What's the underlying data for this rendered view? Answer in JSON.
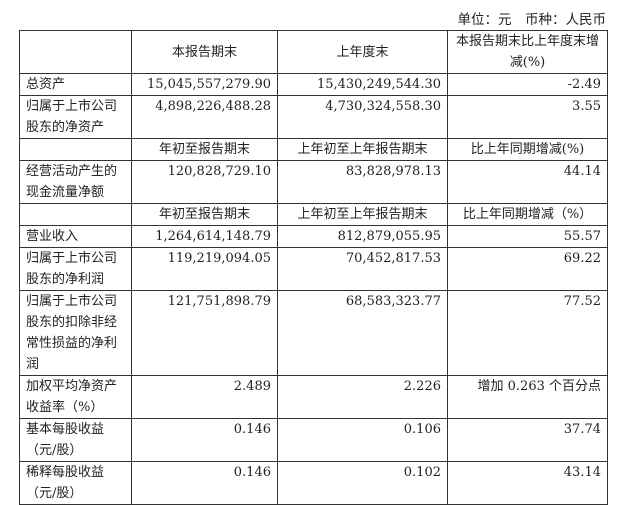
{
  "unit_label": "单位：元　币种：人民币",
  "section1": {
    "headers": [
      "",
      "本报告期末",
      "上年度末",
      "本报告期末比上年度末增减(%)"
    ],
    "rows": [
      {
        "label": "总资产",
        "values": [
          "15,045,557,279.90",
          "15,430,249,544.30",
          "-2.49"
        ]
      },
      {
        "label": "归属于上市公司股东的净资产",
        "values": [
          "4,898,226,488.28",
          "4,730,324,558.30",
          "3.55"
        ]
      }
    ]
  },
  "section2": {
    "headers": [
      "",
      "年初至报告期末",
      "上年初至上年报告期末",
      "比上年同期增减(%)"
    ],
    "rows": [
      {
        "label": "经营活动产生的现金流量净额",
        "values": [
          "120,828,729.10",
          "83,828,978.13",
          "44.14"
        ]
      }
    ]
  },
  "section3": {
    "headers": [
      "",
      "年初至报告期末",
      "上年初至上年报告期末",
      "比上年同期增减（%）"
    ],
    "rows": [
      {
        "label": "营业收入",
        "values": [
          "1,264,614,148.79",
          "812,879,055.95",
          "55.57"
        ]
      },
      {
        "label": "归属于上市公司股东的净利润",
        "values": [
          "119,219,094.05",
          "70,452,817.53",
          "69.22"
        ]
      },
      {
        "label": "归属于上市公司股东的扣除非经常性损益的净利润",
        "values": [
          "121,751,898.79",
          "68,583,323.77",
          "77.52"
        ]
      },
      {
        "label": "加权平均净资产收益率（%）",
        "values": [
          "2.489",
          "2.226",
          "增加 0.263 个百分点"
        ]
      },
      {
        "label": "基本每股收益（元/股）",
        "values": [
          "0.146",
          "0.106",
          "37.74"
        ]
      },
      {
        "label": "稀释每股收益（元/股）",
        "values": [
          "0.146",
          "0.102",
          "43.14"
        ]
      }
    ]
  }
}
